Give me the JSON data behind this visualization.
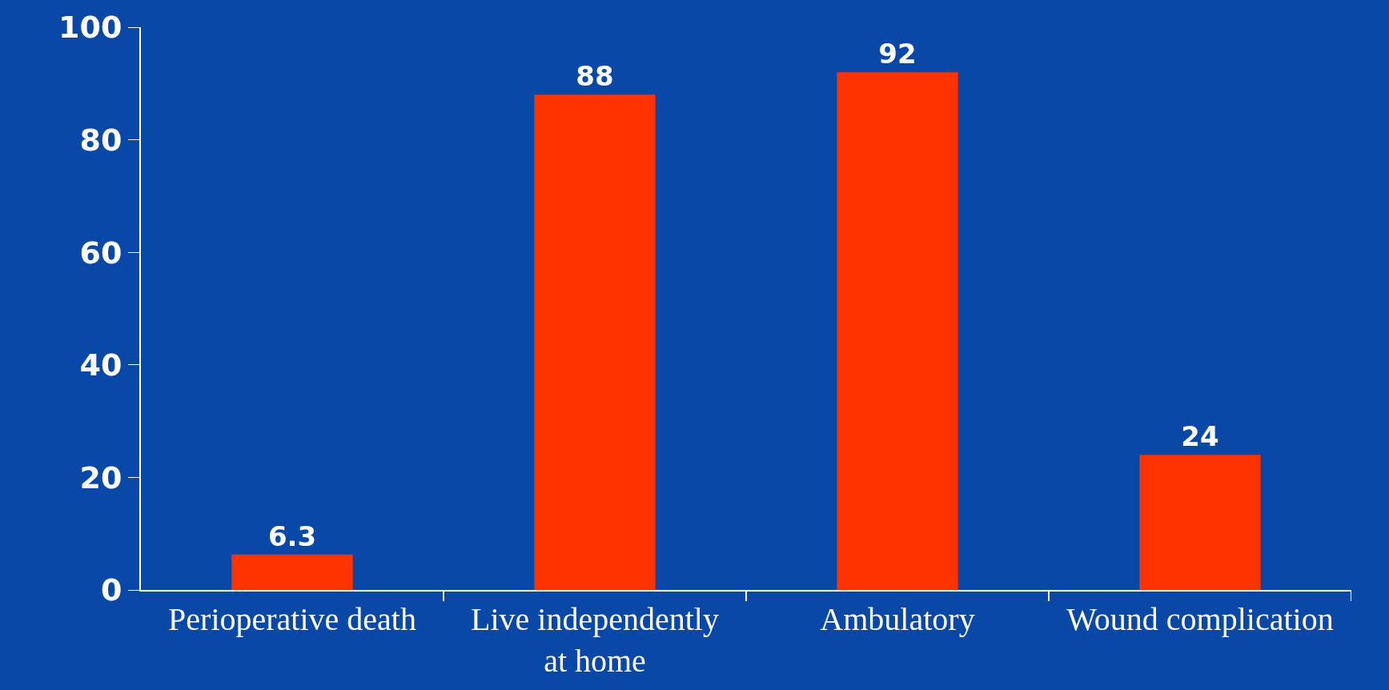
{
  "chart_data": {
    "type": "bar",
    "categories": [
      "Perioperative death",
      "Live independently\nat home",
      "Ambulatory",
      "Wound complication"
    ],
    "values": [
      6.3,
      88,
      92,
      24
    ],
    "color": "#ff3300",
    "ylim": [
      0,
      100
    ],
    "yticks": [
      0,
      20,
      40,
      60,
      80,
      100
    ],
    "data_labels": true,
    "grid": false
  }
}
